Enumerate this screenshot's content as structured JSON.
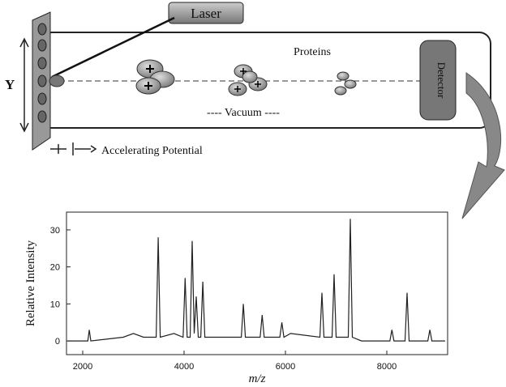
{
  "diagram": {
    "laser": "Laser",
    "proteins": "Proteins",
    "vacuum": "---- Vacuum ----",
    "detector": "Detector",
    "axis_label": "Y",
    "potential": "Accelerating Potential"
  },
  "chart_data": {
    "type": "line",
    "ylabel": "Relative Intensity",
    "xlabel": "m/z",
    "xlim": [
      1680,
      9200
    ],
    "ylim": [
      -3.7,
      34.8
    ],
    "xticks": [
      2000,
      4000,
      6000,
      8000
    ],
    "yticks": [
      0,
      10,
      20,
      30
    ],
    "x": [
      1700,
      2100,
      2130,
      2160,
      2800,
      3000,
      3200,
      3450,
      3490,
      3530,
      3800,
      3980,
      4020,
      4060,
      4120,
      4160,
      4200,
      4240,
      4280,
      4330,
      4370,
      4410,
      4700,
      5130,
      5170,
      5210,
      5500,
      5540,
      5580,
      5890,
      5930,
      5970,
      6100,
      6680,
      6720,
      6760,
      6920,
      6960,
      7000,
      7240,
      7280,
      7320,
      7500,
      8060,
      8100,
      8140,
      8360,
      8400,
      8440,
      8810,
      8850,
      8890,
      9150
    ],
    "values": [
      0,
      0,
      3,
      0,
      1,
      2,
      1,
      1,
      28,
      1,
      2,
      1,
      17,
      1,
      1,
      27,
      2,
      12,
      1,
      1,
      16,
      1,
      1,
      1,
      10,
      1,
      1,
      7,
      1,
      1,
      5,
      1,
      2,
      1,
      13,
      1,
      1,
      18,
      1,
      1,
      33,
      1,
      0,
      0,
      3,
      0,
      0,
      13,
      0,
      0,
      3,
      0,
      0
    ],
    "color": "#222"
  }
}
